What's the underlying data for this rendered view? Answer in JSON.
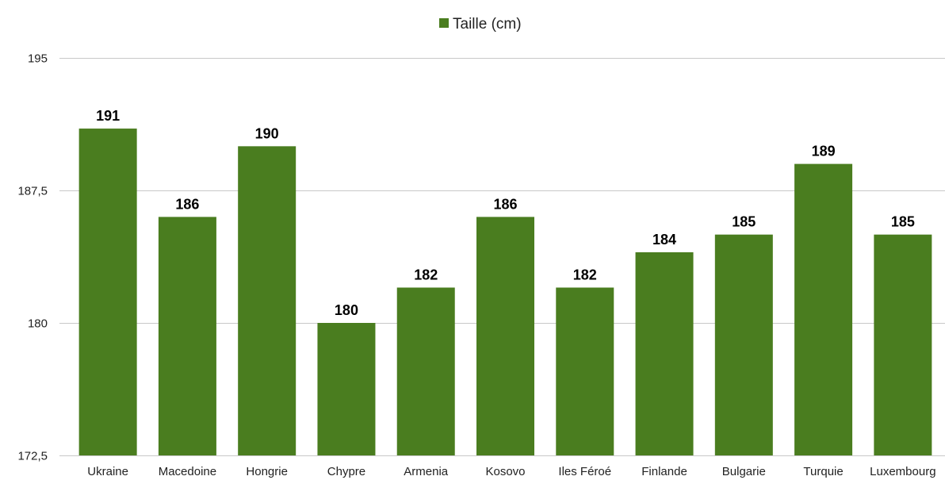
{
  "chart_data": {
    "type": "bar",
    "categories": [
      "Ukraine",
      "Macedoine",
      "Hongrie",
      "Chypre",
      "Armenia",
      "Kosovo",
      "Iles Féroé",
      "Finlande",
      "Bulgarie",
      "Turquie",
      "Luxembourg"
    ],
    "series": [
      {
        "name": "Taille (cm)",
        "values": [
          191,
          186,
          190,
          180,
          182,
          186,
          182,
          184,
          185,
          189,
          185
        ],
        "color": "#4a7d1f"
      }
    ],
    "ylim": [
      172.5,
      195
    ],
    "yticks": [
      "172,5",
      "180",
      "187,5",
      "195"
    ],
    "ytick_values": [
      172.5,
      180,
      187.5,
      195
    ],
    "data_labels": [
      "191",
      "186",
      "190",
      "180",
      "182",
      "186",
      "182",
      "184",
      "185",
      "189",
      "185"
    ],
    "legend_position": "top-center",
    "grid": true
  }
}
